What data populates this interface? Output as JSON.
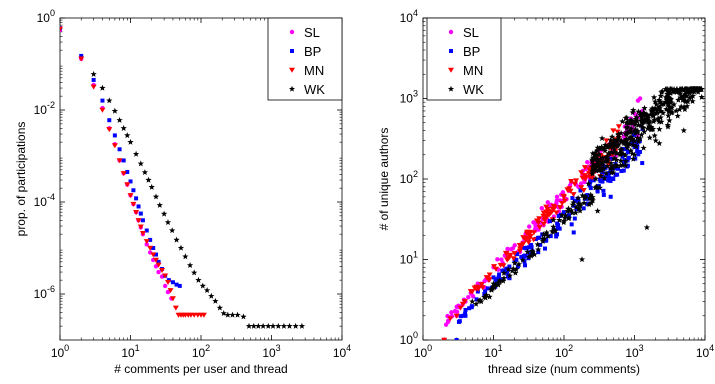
{
  "chart_data": [
    {
      "type": "scatter",
      "xscale": "log",
      "yscale": "log",
      "xlim": [
        1,
        10000
      ],
      "ylim": [
        1e-07,
        1
      ],
      "xlabel": "# comments per user and thread",
      "ylabel": "prop. of participations",
      "x_ticks": [
        {
          "base": "10",
          "exp": "0"
        },
        {
          "base": "10",
          "exp": "1"
        },
        {
          "base": "10",
          "exp": "2"
        },
        {
          "base": "10",
          "exp": "3"
        },
        {
          "base": "10",
          "exp": "4"
        }
      ],
      "y_ticks": [
        {
          "base": "10",
          "exp": "-6"
        },
        {
          "base": "10",
          "exp": "-4"
        },
        {
          "base": "10",
          "exp": "-2"
        },
        {
          "base": "10",
          "exp": "0"
        }
      ],
      "grid": false,
      "legend_position": "top-right",
      "series": [
        {
          "name": "SL",
          "color": "#ff00ff",
          "marker": "circle",
          "points": [
            [
              1,
              0.55
            ],
            [
              2,
              0.13
            ],
            [
              3,
              0.035
            ],
            [
              4,
              0.011
            ],
            [
              5,
              0.004
            ],
            [
              6,
              0.0018
            ],
            [
              7,
              0.0008
            ],
            [
              8,
              0.00042
            ],
            [
              9,
              0.00024
            ],
            [
              10,
              0.00014
            ],
            [
              11,
              9e-05
            ],
            [
              12,
              6e-05
            ],
            [
              13,
              4e-05
            ],
            [
              14,
              2.8e-05
            ],
            [
              15,
              2e-05
            ],
            [
              17,
              1.2e-05
            ],
            [
              19,
              8e-06
            ],
            [
              21,
              5.5e-06
            ],
            [
              23,
              4e-06
            ],
            [
              25,
              3e-06
            ],
            [
              28,
              2.4e-06
            ],
            [
              31,
              1.5e-06
            ],
            [
              34,
              1.1e-06
            ],
            [
              38,
              8e-07
            ]
          ]
        },
        {
          "name": "BP",
          "color": "#0000ff",
          "marker": "square",
          "points": [
            [
              1,
              0.6
            ],
            [
              2,
              0.15
            ],
            [
              3,
              0.045
            ],
            [
              4,
              0.016
            ],
            [
              5,
              0.006
            ],
            [
              6,
              0.0028
            ],
            [
              7,
              0.0014
            ],
            [
              8,
              0.0008
            ],
            [
              9,
              0.00045
            ],
            [
              10,
              0.00028
            ],
            [
              11,
              0.00018
            ],
            [
              12,
              0.00012
            ],
            [
              13,
              8e-05
            ],
            [
              14,
              5.6e-05
            ],
            [
              15,
              4e-05
            ],
            [
              17,
              2.4e-05
            ],
            [
              19,
              1.5e-05
            ],
            [
              21,
              1e-05
            ],
            [
              23,
              7.2e-06
            ],
            [
              25,
              5e-06
            ],
            [
              28,
              3.5e-06
            ],
            [
              31,
              2.5e-06
            ],
            [
              35,
              2e-06
            ],
            [
              40,
              1.8e-06
            ],
            [
              45,
              1.6e-06
            ],
            [
              50,
              1.5e-06
            ]
          ]
        },
        {
          "name": "MN",
          "color": "#ff0000",
          "marker": "triangle-down",
          "points": [
            [
              1,
              0.58
            ],
            [
              2,
              0.13
            ],
            [
              3,
              0.032
            ],
            [
              4,
              0.01
            ],
            [
              5,
              0.0038
            ],
            [
              6,
              0.0017
            ],
            [
              7,
              0.0008
            ],
            [
              8,
              0.00042
            ],
            [
              9,
              0.00024
            ],
            [
              10,
              0.00014
            ],
            [
              11,
              9e-05
            ],
            [
              12,
              6e-05
            ],
            [
              13,
              4e-05
            ],
            [
              14,
              2.9e-05
            ],
            [
              15,
              2.1e-05
            ],
            [
              17,
              1.4e-05
            ],
            [
              19,
              1e-05
            ],
            [
              21,
              7.2e-06
            ],
            [
              23,
              5.5e-06
            ],
            [
              25,
              4.3e-06
            ],
            [
              28,
              3.3e-06
            ],
            [
              31,
              2.5e-06
            ],
            [
              34,
              1.8e-06
            ],
            [
              37,
              1.2e-06
            ],
            [
              40,
              8e-07
            ],
            [
              44,
              5e-07
            ],
            [
              48,
              3.5e-07
            ],
            [
              52,
              3.5e-07
            ],
            [
              56,
              3.5e-07
            ],
            [
              60,
              3.5e-07
            ],
            [
              66,
              3.5e-07
            ],
            [
              72,
              3.5e-07
            ],
            [
              80,
              3.5e-07
            ],
            [
              90,
              3.5e-07
            ],
            [
              100,
              3.5e-07
            ],
            [
              110,
              3.5e-07
            ]
          ]
        },
        {
          "name": "WK",
          "color": "#000000",
          "marker": "star",
          "points": [
            [
              3,
              0.06
            ],
            [
              4,
              0.03
            ],
            [
              5,
              0.016
            ],
            [
              6,
              0.0095
            ],
            [
              7,
              0.006
            ],
            [
              8,
              0.004
            ],
            [
              9,
              0.0028
            ],
            [
              10,
              0.002
            ],
            [
              12,
              0.0011
            ],
            [
              14,
              0.00068
            ],
            [
              16,
              0.00044
            ],
            [
              18,
              0.0003
            ],
            [
              20,
              0.00021
            ],
            [
              23,
              0.00013
            ],
            [
              26,
              8.5e-05
            ],
            [
              30,
              5.5e-05
            ],
            [
              34,
              3.6e-05
            ],
            [
              39,
              2.4e-05
            ],
            [
              45,
              1.5e-05
            ],
            [
              52,
              1e-05
            ],
            [
              60,
              6.5e-06
            ],
            [
              70,
              4.2e-06
            ],
            [
              80,
              2.9e-06
            ],
            [
              92,
              2e-06
            ],
            [
              106,
              1.5e-06
            ],
            [
              122,
              1.2e-06
            ],
            [
              140,
              9e-07
            ],
            [
              160,
              7e-07
            ],
            [
              185,
              5e-07
            ],
            [
              210,
              3.8e-07
            ],
            [
              240,
              3.5e-07
            ],
            [
              280,
              3.5e-07
            ],
            [
              330,
              3.5e-07
            ],
            [
              400,
              3.2e-07
            ],
            [
              480,
              2e-07
            ],
            [
              560,
              2e-07
            ],
            [
              650,
              2e-07
            ],
            [
              760,
              2e-07
            ],
            [
              900,
              2e-07
            ],
            [
              1050,
              2e-07
            ],
            [
              1250,
              2e-07
            ],
            [
              1500,
              2e-07
            ],
            [
              1800,
              2e-07
            ],
            [
              2200,
              2e-07
            ],
            [
              2700,
              2e-07
            ]
          ]
        }
      ]
    },
    {
      "type": "scatter",
      "xscale": "log",
      "yscale": "log",
      "xlim": [
        1,
        10000
      ],
      "ylim": [
        1,
        10000
      ],
      "xlabel": "thread size (num comments)",
      "ylabel": "# of unique authors",
      "x_ticks": [
        {
          "base": "10",
          "exp": "0"
        },
        {
          "base": "10",
          "exp": "1"
        },
        {
          "base": "10",
          "exp": "2"
        },
        {
          "base": "10",
          "exp": "3"
        },
        {
          "base": "10",
          "exp": "4"
        }
      ],
      "y_ticks": [
        {
          "base": "10",
          "exp": "0"
        },
        {
          "base": "10",
          "exp": "1"
        },
        {
          "base": "10",
          "exp": "2"
        },
        {
          "base": "10",
          "exp": "3"
        },
        {
          "base": "10",
          "exp": "4"
        }
      ],
      "grid": false,
      "legend_position": "top-left",
      "series": [
        {
          "name": "SL",
          "color": "#ff00ff",
          "marker": "circle",
          "trend": {
            "x_from": 2,
            "x_to": 1300,
            "k": 0.85,
            "slope": 0.92,
            "spread": 0.18,
            "count": 150
          },
          "points": [
            [
              2,
              1
            ],
            [
              3,
              2
            ],
            [
              4,
              3
            ],
            [
              6,
              5
            ],
            [
              10,
              8
            ],
            [
              20,
              15
            ],
            [
              50,
              32
            ],
            [
              100,
              55
            ],
            [
              200,
              110
            ],
            [
              300,
              170
            ],
            [
              500,
              260
            ],
            [
              800,
              450
            ],
            [
              1000,
              650
            ],
            [
              1200,
              1000
            ],
            [
              1300,
              700
            ]
          ]
        },
        {
          "name": "BP",
          "color": "#0000ff",
          "marker": "square",
          "trend": {
            "x_from": 3,
            "x_to": 1300,
            "k": 0.72,
            "slope": 0.83,
            "spread": 0.22,
            "count": 160
          },
          "points": [
            [
              2,
              1
            ],
            [
              3,
              1
            ],
            [
              4,
              2
            ],
            [
              6,
              4
            ],
            [
              10,
              6
            ],
            [
              20,
              10
            ],
            [
              40,
              18
            ],
            [
              80,
              28
            ],
            [
              150,
              42
            ],
            [
              300,
              70
            ],
            [
              500,
              100
            ],
            [
              800,
              170
            ],
            [
              1000,
              250
            ],
            [
              1300,
              420
            ]
          ]
        },
        {
          "name": "MN",
          "color": "#ff0000",
          "marker": "triangle-down",
          "trend": {
            "x_from": 2,
            "x_to": 600,
            "k": 0.88,
            "slope": 0.9,
            "spread": 0.14,
            "count": 130
          },
          "points": [
            [
              2,
              1
            ],
            [
              3,
              2
            ],
            [
              5,
              4
            ],
            [
              8,
              6
            ],
            [
              15,
              12
            ],
            [
              30,
              22
            ],
            [
              60,
              40
            ],
            [
              100,
              60
            ],
            [
              200,
              100
            ],
            [
              300,
              150
            ],
            [
              400,
              300
            ],
            [
              500,
              400
            ],
            [
              600,
              450
            ]
          ]
        },
        {
          "name": "WK",
          "color": "#000000",
          "marker": "star",
          "trend": {
            "x_from": 4,
            "x_to": 300,
            "k": 0.62,
            "slope": 0.85,
            "spread": 0.12,
            "count": 90
          },
          "cloud": {
            "x_from": 250,
            "x_to": 9000,
            "y_from": 25,
            "y_to": 1300,
            "count": 420
          },
          "points": [
            [
              5,
              3
            ],
            [
              10,
              5
            ],
            [
              20,
              9
            ],
            [
              50,
              18
            ],
            [
              100,
              30
            ],
            [
              200,
              60
            ],
            [
              180,
              10
            ],
            [
              300,
              40
            ],
            [
              500,
              120
            ],
            [
              1000,
              200
            ],
            [
              2000,
              300
            ],
            [
              5000,
              400
            ],
            [
              8000,
              1200
            ],
            [
              1500,
              25
            ]
          ]
        }
      ]
    }
  ]
}
